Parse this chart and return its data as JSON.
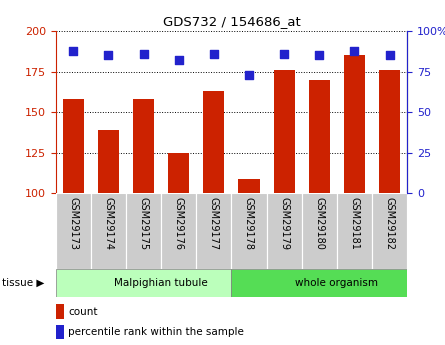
{
  "title": "GDS732 / 154686_at",
  "samples": [
    "GSM29173",
    "GSM29174",
    "GSM29175",
    "GSM29176",
    "GSM29177",
    "GSM29178",
    "GSM29179",
    "GSM29180",
    "GSM29181",
    "GSM29182"
  ],
  "counts": [
    158,
    139,
    158,
    125,
    163,
    109,
    176,
    170,
    185,
    176
  ],
  "percentile": [
    88,
    85,
    86,
    82,
    86,
    73,
    86,
    85,
    88,
    85
  ],
  "bar_color": "#cc2200",
  "dot_color": "#2222cc",
  "ylim_left": [
    100,
    200
  ],
  "ylim_right": [
    0,
    100
  ],
  "yticks_left": [
    100,
    125,
    150,
    175,
    200
  ],
  "yticks_right": [
    0,
    25,
    50,
    75,
    100
  ],
  "ylabel_left_color": "#cc2200",
  "ylabel_right_color": "#2222cc",
  "tissue_groups": [
    {
      "label": "Malpighian tubule",
      "start": 0,
      "end": 5,
      "color": "#bbffbb"
    },
    {
      "label": "whole organism",
      "start": 5,
      "end": 10,
      "color": "#55dd55"
    }
  ],
  "legend_count_label": "count",
  "legend_pct_label": "percentile rank within the sample"
}
